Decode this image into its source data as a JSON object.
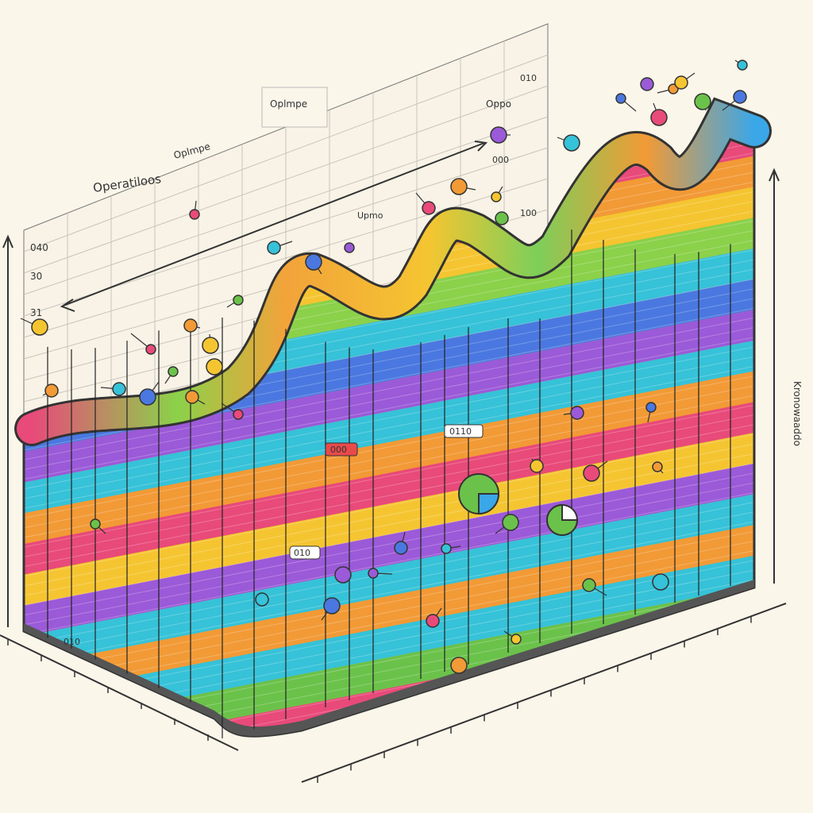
{
  "header": {
    "title": "Operatiloos",
    "subtitle": "Oplmpe"
  },
  "labels": {
    "top_right": "Oppo",
    "top_right_small": "010",
    "upper_right_mid": "000",
    "center": "Upmo",
    "center_right": "100",
    "left_1": "040",
    "left_2": "30",
    "left_3": "31",
    "front_1": "010",
    "front_2": "0110",
    "front_3": "000",
    "bottom_left": "010",
    "right_axis": "Kronowaaddo"
  }
}
